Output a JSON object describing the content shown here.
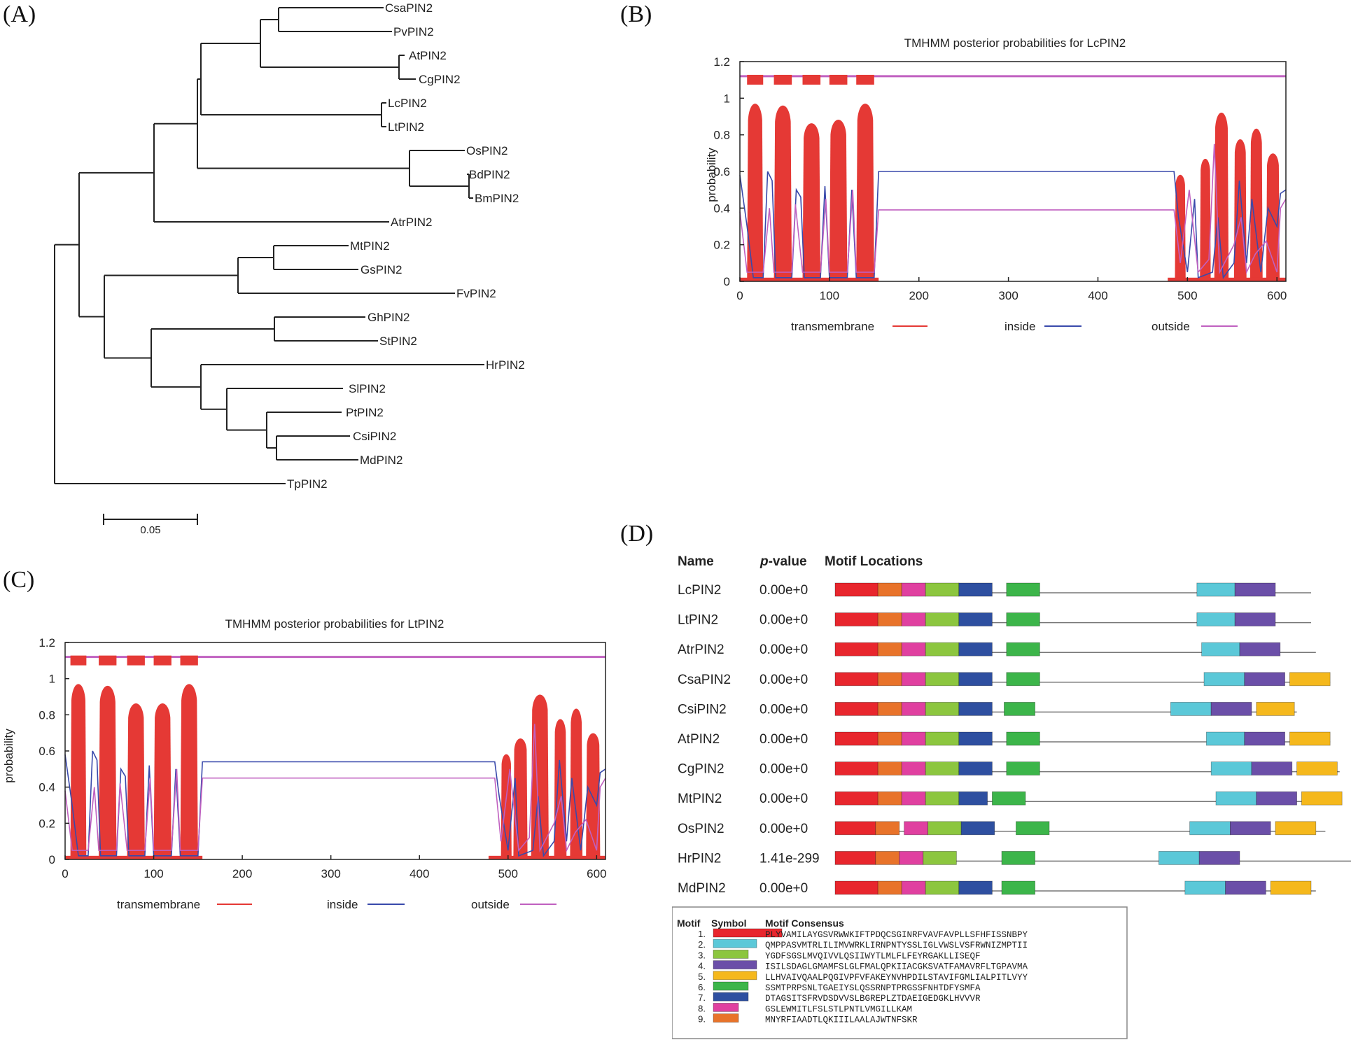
{
  "panels": {
    "a": {
      "label": "(A)"
    },
    "b": {
      "label": "(B)"
    },
    "c": {
      "label": "(C)"
    },
    "d": {
      "label": "(D)"
    }
  },
  "tree": {
    "taxa": [
      "CsaPIN2",
      "PvPIN2",
      "AtPIN2",
      "CgPIN2",
      "LcPIN2",
      "LtPIN2",
      "OsPIN2",
      "BdPIN2",
      "BmPIN2",
      "AtrPIN2",
      "MtPIN2",
      "GsPIN2",
      "FvPIN2",
      "GhPIN2",
      "StPIN2",
      "HrPIN2",
      "SlPIN2",
      "PtPIN2",
      "CsiPIN2",
      "MdPIN2",
      "TpPIN2"
    ],
    "scale_label": "0.05"
  },
  "chart_data": [
    {
      "type": "line",
      "title": "TMHMM posterior probabilities for LcPIN2",
      "xlabel": "",
      "ylabel": "probability",
      "xlim": [
        0,
        610
      ],
      "ylim": [
        0,
        1.2
      ],
      "x_ticks": [
        "0",
        "100",
        "200",
        "300",
        "400",
        "500",
        "600"
      ],
      "y_ticks": [
        "0",
        "0.2",
        "0.4",
        "0.6",
        "0.8",
        "1",
        "1.2"
      ],
      "legend": [
        "transmembrane",
        "inside",
        "outside"
      ],
      "legend_colors": [
        "#e53935",
        "#3949ab",
        "#c060c0"
      ],
      "tm_segments": [
        [
          8,
          26,
          1.0
        ],
        [
          38,
          58,
          0.99
        ],
        [
          70,
          90,
          0.89
        ],
        [
          100,
          120,
          0.91
        ],
        [
          130,
          150,
          1.0
        ],
        [
          486,
          498,
          0.6
        ],
        [
          514,
          526,
          0.69
        ],
        [
          530,
          546,
          0.95
        ],
        [
          552,
          566,
          0.8
        ],
        [
          570,
          584,
          0.86
        ],
        [
          588,
          603,
          0.72
        ]
      ],
      "inside_level": 0.6,
      "outside_level": 0.39
    },
    {
      "type": "line",
      "title": "TMHMM posterior probabilities for LtPIN2",
      "xlabel": "",
      "ylabel": "probability",
      "xlim": [
        0,
        610
      ],
      "ylim": [
        0,
        1.2
      ],
      "x_ticks": [
        "0",
        "100",
        "200",
        "300",
        "400",
        "500",
        "600"
      ],
      "y_ticks": [
        "0",
        "0.2",
        "0.4",
        "0.6",
        "0.8",
        "1",
        "1.2"
      ],
      "legend": [
        "transmembrane",
        "inside",
        "outside"
      ],
      "legend_colors": [
        "#e53935",
        "#3949ab",
        "#c060c0"
      ],
      "tm_segments": [
        [
          6,
          24,
          1.0
        ],
        [
          38,
          58,
          0.99
        ],
        [
          70,
          90,
          0.89
        ],
        [
          100,
          120,
          0.89
        ],
        [
          130,
          150,
          1.0
        ],
        [
          492,
          504,
          0.6
        ],
        [
          506,
          522,
          0.69
        ],
        [
          526,
          546,
          0.94
        ],
        [
          552,
          566,
          0.8
        ],
        [
          570,
          584,
          0.86
        ],
        [
          588,
          604,
          0.72
        ]
      ],
      "inside_level": 0.54,
      "outside_level": 0.45
    }
  ],
  "motif_panel": {
    "headers": {
      "name": "Name",
      "p_prefix": "p",
      "p_suffix": "-value",
      "locations": "Motif Locations"
    },
    "rows": [
      {
        "name": "LcPIN2",
        "p": "0.00e+0",
        "len": 1000,
        "motifs": [
          [
            1,
            0,
            90
          ],
          [
            9,
            90,
            140
          ],
          [
            8,
            140,
            190
          ],
          [
            3,
            190,
            260
          ],
          [
            7,
            260,
            330
          ],
          [
            6,
            360,
            430
          ],
          [
            2,
            760,
            840
          ],
          [
            4,
            840,
            925
          ]
        ]
      },
      {
        "name": "LtPIN2",
        "p": "0.00e+0",
        "len": 1000,
        "motifs": [
          [
            1,
            0,
            90
          ],
          [
            9,
            90,
            140
          ],
          [
            8,
            140,
            190
          ],
          [
            3,
            190,
            260
          ],
          [
            7,
            260,
            330
          ],
          [
            6,
            360,
            430
          ],
          [
            2,
            760,
            840
          ],
          [
            4,
            840,
            925
          ]
        ]
      },
      {
        "name": "AtrPIN2",
        "p": "0.00e+0",
        "len": 1010,
        "motifs": [
          [
            1,
            0,
            90
          ],
          [
            9,
            90,
            140
          ],
          [
            8,
            140,
            190
          ],
          [
            3,
            190,
            260
          ],
          [
            7,
            260,
            330
          ],
          [
            6,
            360,
            430
          ],
          [
            2,
            770,
            850
          ],
          [
            4,
            850,
            935
          ]
        ]
      },
      {
        "name": "CsaPIN2",
        "p": "0.00e+0",
        "len": 1040,
        "motifs": [
          [
            1,
            0,
            90
          ],
          [
            9,
            90,
            140
          ],
          [
            8,
            140,
            190
          ],
          [
            3,
            190,
            260
          ],
          [
            7,
            260,
            330
          ],
          [
            6,
            360,
            430
          ],
          [
            2,
            775,
            860
          ],
          [
            4,
            860,
            945
          ],
          [
            5,
            955,
            1040
          ]
        ]
      },
      {
        "name": "CsiPIN2",
        "p": "0.00e+0",
        "len": 970,
        "motifs": [
          [
            1,
            0,
            90
          ],
          [
            9,
            90,
            140
          ],
          [
            8,
            140,
            190
          ],
          [
            3,
            190,
            260
          ],
          [
            7,
            260,
            330
          ],
          [
            6,
            355,
            420
          ],
          [
            2,
            705,
            790
          ],
          [
            4,
            790,
            875
          ],
          [
            5,
            885,
            965
          ]
        ]
      },
      {
        "name": "AtPIN2",
        "p": "0.00e+0",
        "len": 1040,
        "motifs": [
          [
            1,
            0,
            90
          ],
          [
            9,
            90,
            140
          ],
          [
            8,
            140,
            190
          ],
          [
            3,
            190,
            260
          ],
          [
            7,
            260,
            330
          ],
          [
            6,
            360,
            430
          ],
          [
            2,
            780,
            860
          ],
          [
            4,
            860,
            945
          ],
          [
            5,
            955,
            1040
          ]
        ]
      },
      {
        "name": "CgPIN2",
        "p": "0.00e+0",
        "len": 1060,
        "motifs": [
          [
            1,
            0,
            90
          ],
          [
            9,
            90,
            140
          ],
          [
            8,
            140,
            190
          ],
          [
            3,
            190,
            260
          ],
          [
            7,
            260,
            330
          ],
          [
            6,
            360,
            430
          ],
          [
            2,
            790,
            875
          ],
          [
            4,
            875,
            960
          ],
          [
            5,
            970,
            1055
          ]
        ]
      },
      {
        "name": "MtPIN2",
        "p": "0.00e+0",
        "len": 1060,
        "motifs": [
          [
            1,
            0,
            90
          ],
          [
            9,
            90,
            140
          ],
          [
            8,
            140,
            190
          ],
          [
            3,
            190,
            260
          ],
          [
            7,
            260,
            320
          ],
          [
            6,
            330,
            400
          ],
          [
            2,
            800,
            885
          ],
          [
            4,
            885,
            970
          ],
          [
            5,
            980,
            1065
          ]
        ]
      },
      {
        "name": "OsPIN2",
        "p": "0.00e+0",
        "len": 1030,
        "motifs": [
          [
            1,
            0,
            85
          ],
          [
            9,
            85,
            135
          ],
          [
            8,
            145,
            195
          ],
          [
            3,
            195,
            265
          ],
          [
            7,
            265,
            335
          ],
          [
            6,
            380,
            450
          ],
          [
            2,
            745,
            830
          ],
          [
            4,
            830,
            915
          ],
          [
            5,
            925,
            1010
          ]
        ]
      },
      {
        "name": "HrPIN2",
        "p": "1.41e-299",
        "len": 1120,
        "motifs": [
          [
            1,
            0,
            85
          ],
          [
            9,
            85,
            135
          ],
          [
            8,
            135,
            185
          ],
          [
            3,
            185,
            255
          ],
          [
            6,
            350,
            420
          ],
          [
            2,
            680,
            765
          ],
          [
            4,
            765,
            850
          ]
        ]
      },
      {
        "name": "MdPIN2",
        "p": "0.00e+0",
        "len": 1010,
        "motifs": [
          [
            1,
            0,
            90
          ],
          [
            9,
            90,
            140
          ],
          [
            8,
            140,
            190
          ],
          [
            3,
            190,
            260
          ],
          [
            7,
            260,
            330
          ],
          [
            6,
            350,
            420
          ],
          [
            2,
            735,
            820
          ],
          [
            4,
            820,
            905
          ],
          [
            5,
            915,
            1000
          ]
        ]
      }
    ],
    "legend": {
      "headers": {
        "motif": "Motif",
        "symbol": "Symbol",
        "consensus": "Motif Consensus"
      },
      "items": [
        {
          "id": "1.",
          "color": "#e8262d",
          "consensus": "PLYVAMILAYGSVRWWKIFTPDQCSGINRFVAVFAVPLLSFHFISSNBPY"
        },
        {
          "id": "2.",
          "color": "#5bc8d8",
          "consensus": "QMPPASVMTRLILIMVWRKLIRNPNTYSSLIGLVWSLVSFRWNIZMPTII"
        },
        {
          "id": "3.",
          "color": "#8cc63f",
          "consensus": "YGDFSGSLMVQIVVLQSIIWYTLMLFLFEYRGAKLLISEQF"
        },
        {
          "id": "4.",
          "color": "#6b4fa8",
          "consensus": "ISILSDAGLGMAMFSLGLFMALQPKIIACGKSVATFAMAVRFLTGPAVMA"
        },
        {
          "id": "5.",
          "color": "#f5b81c",
          "consensus": "LLHVAIVQAALPQGIVPFVFAKEYNVHPDILSTAVIFGMLIALPITLVYY"
        },
        {
          "id": "6.",
          "color": "#3cb54a",
          "consensus": "SSMTPRPSNLTGAEIYSLQSSRNPTPRGSSFNHTDFYSMFA"
        },
        {
          "id": "7.",
          "color": "#2e4fa0",
          "consensus": "DTAGSITSFRVDSDVVSLBGREPLZTDAEIGEDGKLHVVVR"
        },
        {
          "id": "8.",
          "color": "#e040a0",
          "consensus": "GSLEWMITLFSLSTLPNTLVMGILLKAM"
        },
        {
          "id": "9.",
          "color": "#e8732a",
          "consensus": "MNYRFIAADTLQKIIILAALAJWTNFSKR"
        }
      ]
    }
  }
}
